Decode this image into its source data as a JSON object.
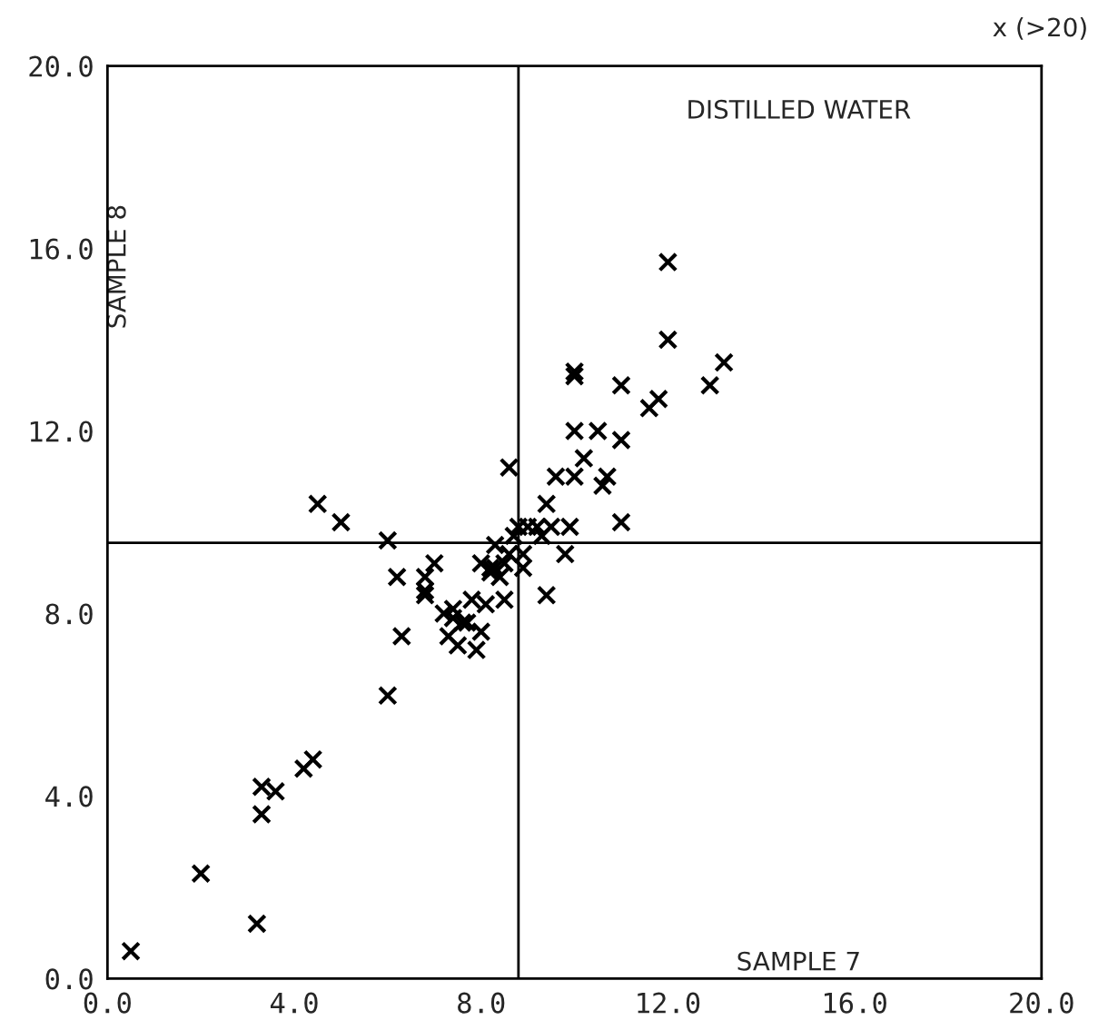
{
  "chart_data": {
    "type": "scatter",
    "xlabel": "SAMPLE 7",
    "ylabel": "SAMPLE 8",
    "annotations": [
      "DISTILLED WATER",
      "x (>20)"
    ],
    "marker": "cross",
    "grid": false,
    "legend": false,
    "xlim": [
      0,
      20
    ],
    "ylim": [
      0,
      20
    ],
    "xticks": [
      {
        "value": 0,
        "label": "0.0"
      },
      {
        "value": 4,
        "label": "4.0"
      },
      {
        "value": 8,
        "label": "8.0"
      },
      {
        "value": 12,
        "label": "12.0"
      },
      {
        "value": 16,
        "label": "16.0"
      },
      {
        "value": 20,
        "label": "20.0"
      }
    ],
    "yticks": [
      {
        "value": 0,
        "label": "0.0"
      },
      {
        "value": 4,
        "label": "4.0"
      },
      {
        "value": 8,
        "label": "8.0"
      },
      {
        "value": 12,
        "label": "12.0"
      },
      {
        "value": 16,
        "label": "16.0"
      },
      {
        "value": 20,
        "label": "20.0"
      }
    ],
    "ref_lines": [
      {
        "axis": "x",
        "value": 8.8,
        "color": "#000000"
      },
      {
        "axis": "y",
        "value": 9.55,
        "color": "#000000"
      }
    ],
    "series": [
      {
        "color": "#000000",
        "x": [
          0.5,
          2.0,
          3.2,
          3.3,
          3.3,
          3.6,
          4.2,
          4.4,
          4.5,
          5.0,
          6.0,
          6.0,
          6.2,
          6.3,
          6.8,
          6.8,
          6.8,
          7.0,
          7.2,
          7.3,
          7.4,
          7.4,
          7.5,
          7.6,
          7.7,
          7.8,
          7.9,
          8.0,
          8.0,
          8.1,
          8.2,
          8.2,
          8.3,
          8.3,
          8.4,
          8.5,
          8.5,
          8.6,
          8.6,
          8.7,
          8.8,
          8.9,
          8.9,
          9.0,
          9.2,
          9.3,
          9.4,
          9.4,
          9.5,
          9.6,
          9.8,
          9.9,
          10.0,
          10.0,
          10.0,
          10.0,
          10.2,
          10.5,
          10.6,
          10.7,
          11.0,
          11.0,
          11.0,
          11.6,
          11.8,
          12.0,
          12.0,
          12.9,
          13.2
        ],
        "values": [
          0.6,
          2.3,
          1.2,
          4.2,
          3.6,
          4.1,
          4.6,
          4.8,
          10.4,
          10.0,
          9.6,
          6.2,
          8.8,
          7.5,
          8.5,
          8.8,
          8.4,
          9.1,
          8.0,
          7.5,
          8.1,
          7.9,
          7.3,
          7.8,
          7.8,
          8.3,
          7.2,
          9.1,
          7.6,
          8.2,
          8.9,
          9.0,
          9.5,
          9.0,
          8.8,
          8.3,
          9.1,
          11.2,
          9.3,
          9.7,
          9.9,
          9.0,
          9.3,
          9.9,
          9.9,
          9.7,
          10.4,
          8.4,
          9.9,
          11.0,
          9.3,
          9.9,
          11.0,
          12.0,
          13.3,
          13.2,
          11.4,
          12.0,
          10.8,
          11.0,
          13.0,
          11.8,
          10.0,
          12.5,
          12.7,
          14.0,
          15.7,
          13.0,
          13.5
        ]
      }
    ]
  }
}
